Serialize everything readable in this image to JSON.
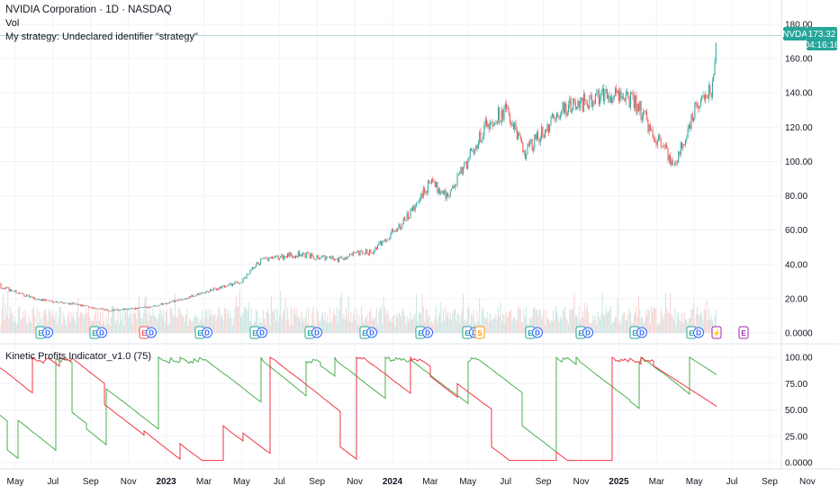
{
  "header": {
    "symbol_title": "NVIDIA Corporation · 1D · NASDAQ",
    "volume_label": "Vol",
    "strategy_error": "My strategy: Undeclared identifier \"strategy\""
  },
  "price_badge": {
    "ticker": "NVDA",
    "price": "173.32",
    "countdown": "04:16:18",
    "color": "#26a69a"
  },
  "indicator": {
    "title": "Kinetic Profits Indicator_v1.0 (75)"
  },
  "colors": {
    "up": "#26a69a",
    "down": "#ef5350",
    "green_line": "#4caf50",
    "red_line": "#f23645",
    "volume": "#e0e3eb",
    "grid": "#f0f3fa",
    "earnings": "#2962ff",
    "dividend": "#ff9800",
    "purple": "#9c27b0"
  },
  "chart_data": [
    {
      "type": "candlestick",
      "title": "NVIDIA Corporation · 1D · NASDAQ",
      "x_ticks": [
        "May",
        "Jul",
        "Sep",
        "Nov",
        "2023",
        "Mar",
        "May",
        "Jul",
        "Sep",
        "Nov",
        "2024",
        "Mar",
        "May",
        "Jul",
        "Sep",
        "Nov",
        "2025",
        "Mar",
        "May",
        "Jul",
        "Sep",
        "Nov"
      ],
      "y_ticks": [
        "180.00",
        "160.00",
        "140.00",
        "120.00",
        "100.00",
        "80.00",
        "60.00",
        "40.00",
        "20.00",
        "0.0000"
      ],
      "ylim": [
        0,
        180
      ],
      "x_months": [
        "2022-04",
        "2022-06",
        "2022-08",
        "2022-10",
        "2022-12",
        "2023-02",
        "2023-04",
        "2023-05",
        "2023-06",
        "2023-08",
        "2023-10",
        "2023-12",
        "2024-02",
        "2024-03",
        "2024-04",
        "2024-06",
        "2024-07",
        "2024-08",
        "2024-10",
        "2024-12",
        "2025-01",
        "2025-02",
        "2025-03",
        "2025-04",
        "2025-05",
        "2025-06",
        "2025-07"
      ],
      "approx_close": [
        28,
        20,
        17,
        13,
        15,
        20,
        27,
        30,
        42,
        46,
        43,
        48,
        70,
        88,
        80,
        122,
        130,
        105,
        130,
        138,
        140,
        133,
        113,
        98,
        130,
        142,
        173.32
      ],
      "last_price": 173.32,
      "events": [
        "E",
        "E",
        "E",
        "E",
        "E",
        "E",
        "E",
        "E",
        "E",
        "E",
        "E",
        "S",
        "E",
        "E",
        "E",
        "E",
        "E",
        "E",
        "E"
      ]
    },
    {
      "type": "line",
      "title": "Kinetic Profits Indicator_v1.0 (75)",
      "y_ticks": [
        "100.00",
        "75.00",
        "50.00",
        "25.00",
        "0.0000"
      ],
      "ylim": [
        0,
        100
      ],
      "series": [
        {
          "color": "#4caf50"
        },
        {
          "color": "#f23645"
        }
      ]
    }
  ]
}
